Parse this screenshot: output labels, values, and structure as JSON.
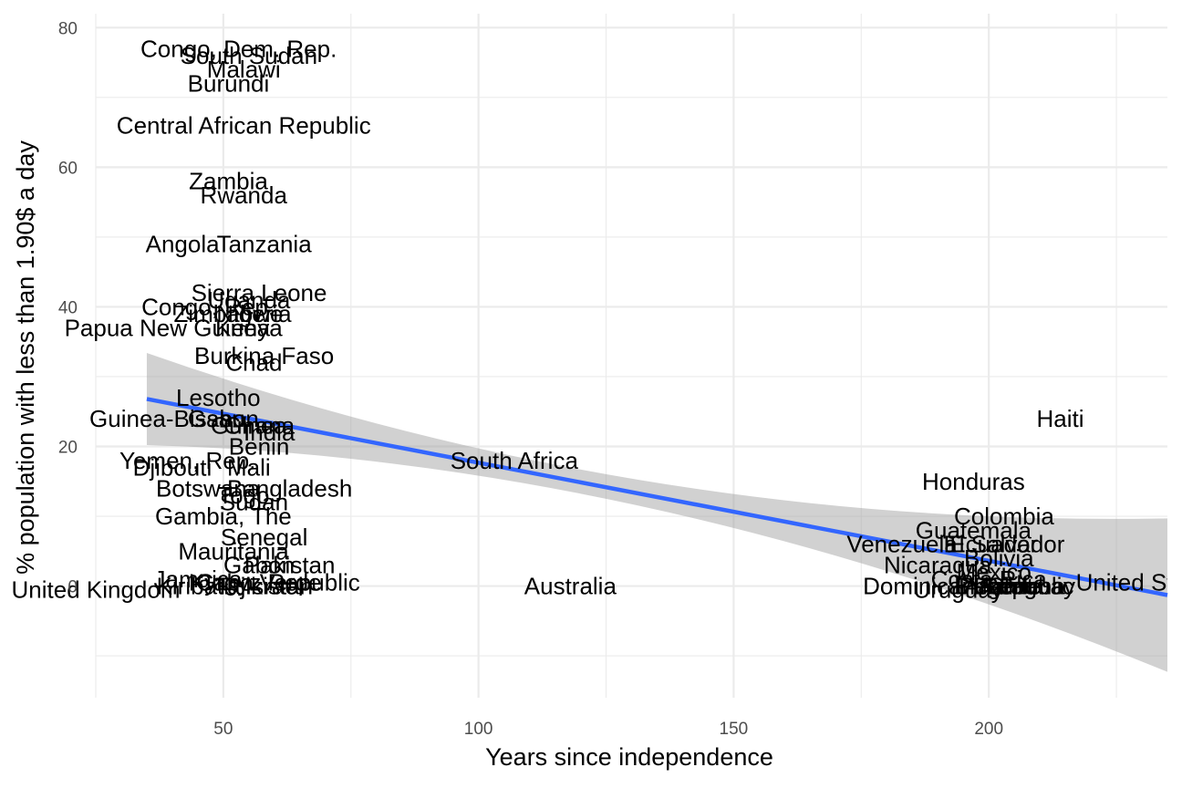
{
  "chart_data": {
    "type": "scatter",
    "title": "",
    "xlabel": "Years since independence",
    "ylabel": "% population with less than 1.90$ a day",
    "xlim": [
      25,
      235
    ],
    "ylim": [
      -16,
      82
    ],
    "x_ticks": [
      50,
      100,
      150,
      200
    ],
    "y_ticks": [
      0,
      20,
      40,
      60,
      80
    ],
    "x_minor": [
      25,
      75,
      125,
      175,
      225
    ],
    "y_minor": [
      -10,
      10,
      30,
      50,
      70
    ],
    "grid": true,
    "legend": "none",
    "colors": {
      "trend": "#3366FF",
      "ribbon": "#999999",
      "grid": "#ebebeb"
    },
    "points": [
      {
        "label": "Congo, Dem. Rep.",
        "x": 53,
        "y": 77
      },
      {
        "label": "South Sudan",
        "x": 55,
        "y": 76
      },
      {
        "label": "Malawi",
        "x": 54,
        "y": 74
      },
      {
        "label": "Burundi",
        "x": 51,
        "y": 72
      },
      {
        "label": "Central African Republic",
        "x": 54,
        "y": 66
      },
      {
        "label": "Zambia",
        "x": 51,
        "y": 58
      },
      {
        "label": "Rwanda",
        "x": 54,
        "y": 56
      },
      {
        "label": "Angola",
        "x": 42,
        "y": 49
      },
      {
        "label": "Tanzania",
        "x": 58,
        "y": 49
      },
      {
        "label": "Sierra Leone",
        "x": 57,
        "y": 42
      },
      {
        "label": "Uganda",
        "x": 55,
        "y": 41
      },
      {
        "label": "Congo, Rep.",
        "x": 47,
        "y": 40
      },
      {
        "label": "Zimbabwe",
        "x": 51,
        "y": 39
      },
      {
        "label": "Nigeria",
        "x": 56,
        "y": 39
      },
      {
        "label": "Papua New Guinea",
        "x": 39,
        "y": 37
      },
      {
        "label": "Kenya",
        "x": 55,
        "y": 37
      },
      {
        "label": "Burkina Faso",
        "x": 58,
        "y": 33
      },
      {
        "label": "Chad",
        "x": 56,
        "y": 32
      },
      {
        "label": "Lesotho",
        "x": 49,
        "y": 27
      },
      {
        "label": "Guinea-Bissau",
        "x": 39,
        "y": 24
      },
      {
        "label": "Gabon",
        "x": 50,
        "y": 24
      },
      {
        "label": "Ghana",
        "x": 57,
        "y": 23
      },
      {
        "label": "Guinea",
        "x": 55,
        "y": 23
      },
      {
        "label": "India",
        "x": 59,
        "y": 22
      },
      {
        "label": "Benin",
        "x": 57,
        "y": 20
      },
      {
        "label": "Yemen, Rep.",
        "x": 43,
        "y": 18
      },
      {
        "label": "Djibouti",
        "x": 40,
        "y": 17
      },
      {
        "label": "Mali",
        "x": 55,
        "y": 17
      },
      {
        "label": "Bangladesh",
        "x": 63,
        "y": 14
      },
      {
        "label": "Botswana",
        "x": 47,
        "y": 14
      },
      {
        "label": "Togo",
        "x": 54,
        "y": 13
      },
      {
        "label": "Sudan",
        "x": 56,
        "y": 12
      },
      {
        "label": "Gambia, The",
        "x": 50,
        "y": 10
      },
      {
        "label": "Senegal",
        "x": 58,
        "y": 7
      },
      {
        "label": "Mauritania",
        "x": 52,
        "y": 5
      },
      {
        "label": "Pakistan",
        "x": 63,
        "y": 3
      },
      {
        "label": "Gabon",
        "x": 57,
        "y": 3
      },
      {
        "label": "Jamaica",
        "x": 45,
        "y": 1
      },
      {
        "label": "Cabo Verde",
        "x": 57,
        "y": 0.5
      },
      {
        "label": "Kyrgyz Republic",
        "x": 60,
        "y": 0.5
      },
      {
        "label": "United Kingdom",
        "x": 25,
        "y": -0.5
      },
      {
        "label": "Kiribati",
        "x": 44,
        "y": 0
      },
      {
        "label": "Israel",
        "x": 60,
        "y": 0
      },
      {
        "label": "Tajikistan",
        "x": 58,
        "y": 0
      },
      {
        "label": "Australia",
        "x": 118,
        "y": 0
      },
      {
        "label": "South Africa",
        "x": 107,
        "y": 18
      },
      {
        "label": "Haiti",
        "x": 214,
        "y": 24
      },
      {
        "label": "Honduras",
        "x": 197,
        "y": 15
      },
      {
        "label": "Colombia",
        "x": 203,
        "y": 10
      },
      {
        "label": "Guatemala",
        "x": 197,
        "y": 8
      },
      {
        "label": "Venezuela",
        "x": 183,
        "y": 6
      },
      {
        "label": "El Salvador",
        "x": 203,
        "y": 6
      },
      {
        "label": "Ecuador",
        "x": 201,
        "y": 6
      },
      {
        "label": "Bolivia",
        "x": 202,
        "y": 4
      },
      {
        "label": "Nicaragua",
        "x": 190,
        "y": 3
      },
      {
        "label": "Mexico",
        "x": 201,
        "y": 2
      },
      {
        "label": "Costa Rica",
        "x": 200,
        "y": 1
      },
      {
        "label": "Dominican Republic",
        "x": 196,
        "y": 0
      },
      {
        "label": "Argentina",
        "x": 205,
        "y": 0
      },
      {
        "label": "Chile",
        "x": 205,
        "y": 0
      },
      {
        "label": "Paraguay",
        "x": 207,
        "y": 0
      },
      {
        "label": "Brazil",
        "x": 199,
        "y": 0
      },
      {
        "label": "Peru",
        "x": 199,
        "y": 0
      },
      {
        "label": "Uruguay",
        "x": 194,
        "y": -0.5
      },
      {
        "label": "United States",
        "x": 231,
        "y": 0.5
      }
    ],
    "trend": {
      "x": [
        35,
        235
      ],
      "y": [
        26.8,
        -1.3
      ],
      "ci_lower": [
        20.2,
        -12.3
      ],
      "ci_upper": [
        33.4,
        9.7
      ],
      "ci_mid_x": 133,
      "ci_mid_lower": [
        11.1
      ],
      "ci_mid_upper": [
        14.9
      ]
    }
  }
}
